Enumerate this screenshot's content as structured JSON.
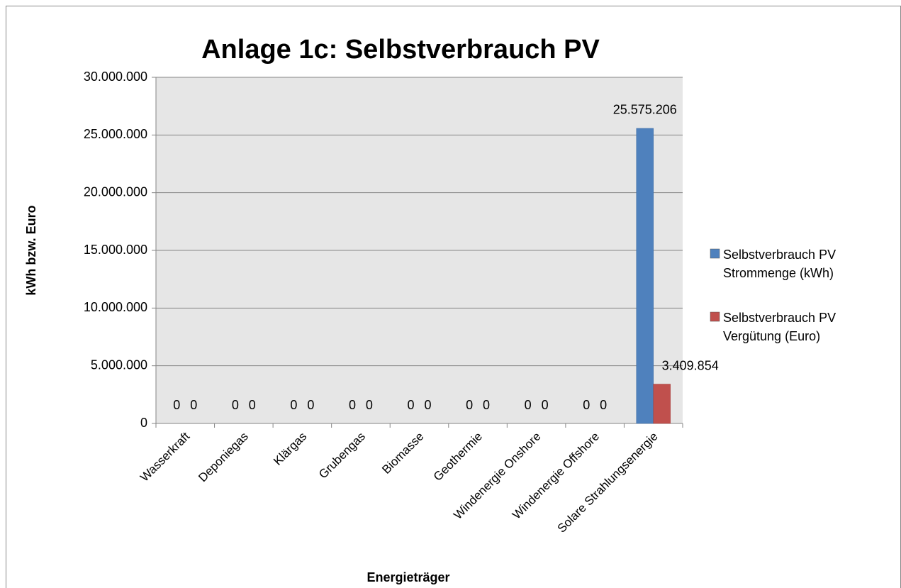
{
  "chart_data": {
    "type": "bar",
    "title": "Anlage 1c: Selbstverbrauch PV",
    "x_label": "Energieträger",
    "y_label": "kWh bzw. Euro",
    "categories": [
      "Wasserkraft",
      "Deponiegas",
      "Klärgas",
      "Grubengas",
      "Biomasse",
      "Geothermie",
      "Windenergie Onshore",
      "Windenergie Offshore",
      "Solare Strahlungsenergie"
    ],
    "series": [
      {
        "name": "Selbstverbrauch PV Strommenge (kWh)",
        "color": "#4f81bd",
        "values": [
          0,
          0,
          0,
          0,
          0,
          0,
          0,
          0,
          25575206
        ],
        "value_labels": [
          "0",
          "0",
          "0",
          "0",
          "0",
          "0",
          "0",
          "0",
          "25.575.206"
        ]
      },
      {
        "name": "Selbstverbrauch PV Vergütung (Euro)",
        "color": "#c0504d",
        "values": [
          0,
          0,
          0,
          0,
          0,
          0,
          0,
          0,
          3409854
        ],
        "value_labels": [
          "0",
          "0",
          "0",
          "0",
          "0",
          "0",
          "0",
          "0",
          "3.409.854"
        ]
      }
    ],
    "ylim": [
      0,
      30000000
    ],
    "yticks": [
      0,
      {
        "value": 5000000,
        "label": "5.000.000"
      },
      {
        "value": 10000000,
        "label": "10.000.000"
      },
      {
        "value": 15000000,
        "label": "15.000.000"
      },
      {
        "value": 20000000,
        "label": "20.000.000"
      },
      {
        "value": 25000000,
        "label": "25.000.000"
      },
      {
        "value": 30000000,
        "label": "30.000.000"
      }
    ],
    "grid": true,
    "legend": "right"
  }
}
